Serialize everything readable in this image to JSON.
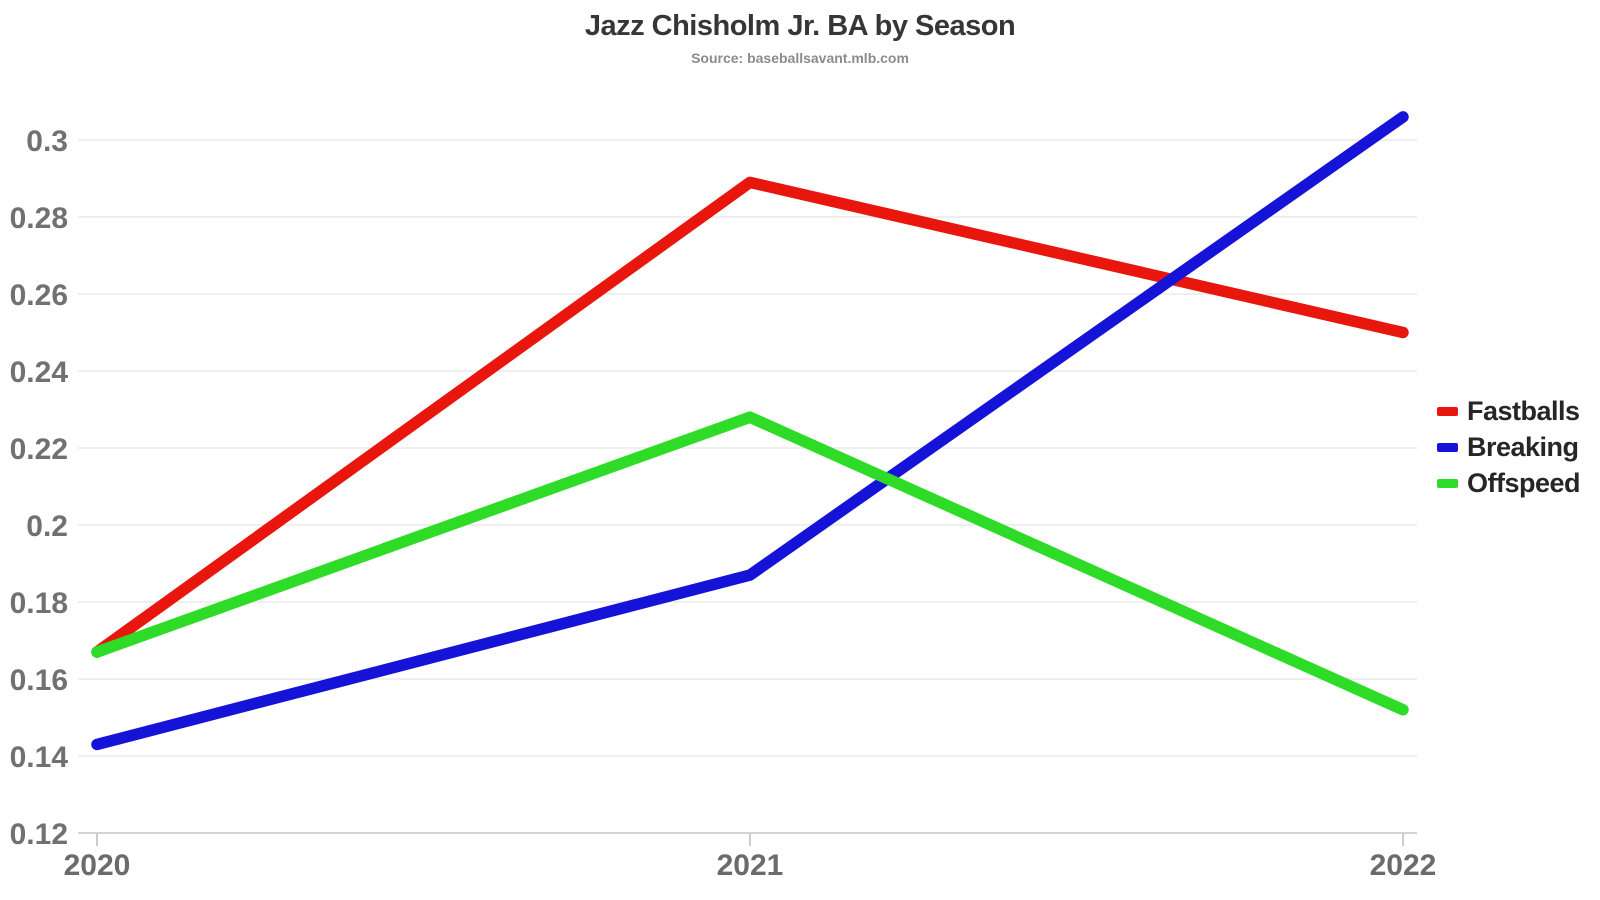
{
  "title": "Jazz Chisholm Jr. BA by Season",
  "subtitle": "Source: baseballsavant.mlb.com",
  "colors": {
    "fastballs": "#e8160d",
    "breaking": "#1613d8",
    "offspeed": "#2edb27",
    "grid": "#efefef",
    "axis_line": "#d4d4d4",
    "axis_label": "#717171",
    "title_text": "#363636",
    "subtitle_text": "#8c8c8c",
    "legend_text": "#262626",
    "background": "#ffffff"
  },
  "legend": {
    "position": "right",
    "items": [
      {
        "label": "Fastballs",
        "color": "#e8160d"
      },
      {
        "label": "Breaking",
        "color": "#1613d8"
      },
      {
        "label": "Offspeed",
        "color": "#2edb27"
      }
    ]
  },
  "chart_data": {
    "type": "line",
    "title": "Jazz Chisholm Jr. BA by Season",
    "subtitle": "Source: baseballsavant.mlb.com",
    "x": [
      "2020",
      "2021",
      "2022"
    ],
    "series": [
      {
        "name": "Fastballs",
        "color": "#e8160d",
        "values": [
          0.167,
          0.289,
          0.25
        ]
      },
      {
        "name": "Breaking",
        "color": "#1613d8",
        "values": [
          0.143,
          0.187,
          0.306
        ]
      },
      {
        "name": "Offspeed",
        "color": "#2edb27",
        "values": [
          0.167,
          0.228,
          0.152
        ]
      }
    ],
    "xlabel": "",
    "ylabel": "",
    "ylim": [
      0.12,
      0.31
    ],
    "yticks": [
      0.12,
      0.14,
      0.16,
      0.18,
      0.2,
      0.22,
      0.24,
      0.26,
      0.28,
      0.3
    ],
    "grid": true,
    "legend_position": "right"
  }
}
